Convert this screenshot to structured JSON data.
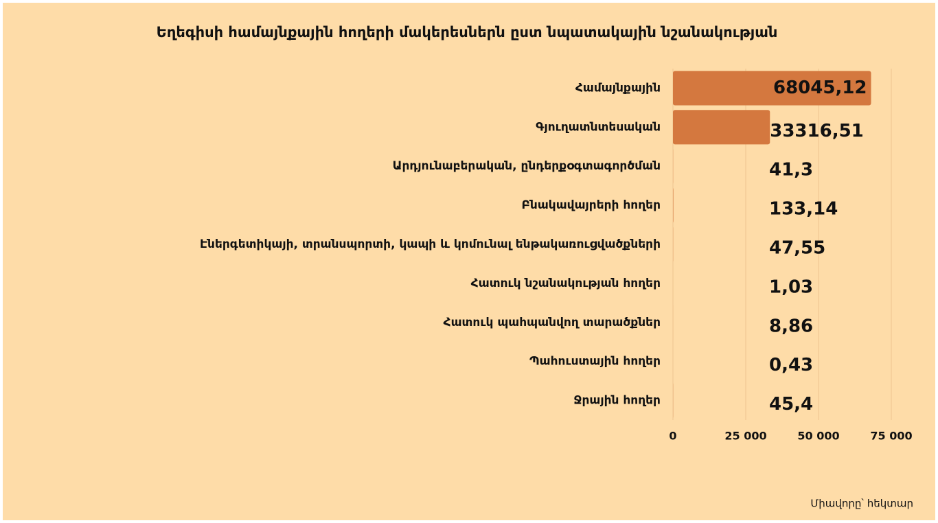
{
  "chart_data": {
    "type": "bar",
    "orientation": "horizontal",
    "title": "Եղեգիսի համայնքային հողերի մակերեսներն ըստ նպատակային նշանակության",
    "categories": [
      "Համայնքային",
      "Գյուղատնտեսական",
      "Արդյունաբերական, ընդերքօգտագործման",
      "Բնակավայրերի հողեր",
      "Էներգետիկայի, տրանսպորտի, կապի և կոմունալ ենթակառուցվածքների",
      "Հատուկ նշանակության հողեր",
      "Հատուկ պահպանվող տարածքներ",
      "Պահուստային հողեր",
      "Ջրային հողեր"
    ],
    "values": [
      68045.12,
      33316.51,
      41.3,
      133.14,
      47.55,
      1.03,
      8.86,
      0.43,
      45.4
    ],
    "value_labels": [
      "68045,12",
      "33316,51",
      "41,3",
      "133,14",
      "47,55",
      "1,03",
      "8,86",
      "0,43",
      "45,4"
    ],
    "color": "#d4783f",
    "xlim": [
      0,
      75000
    ],
    "xticks": [
      0,
      {
        "value": 25000,
        "label": "25 000"
      },
      {
        "value": 50000,
        "label": "50 000"
      },
      {
        "value": 75000,
        "label": "75 000"
      }
    ],
    "grid": true,
    "unit_note": "Միավորը՝ հեկտար"
  }
}
